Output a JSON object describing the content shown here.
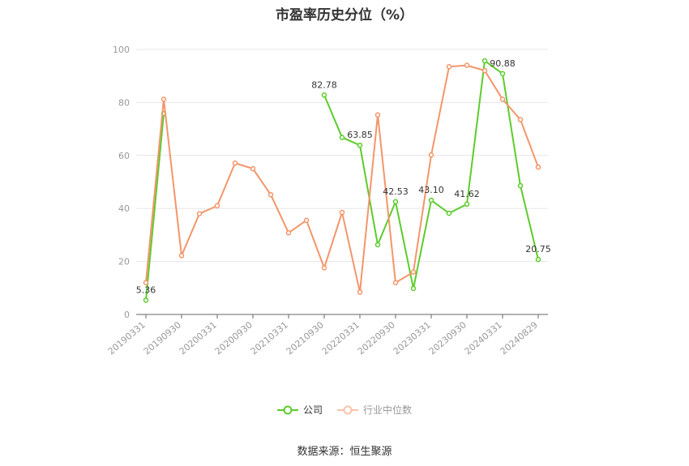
{
  "chart_data": {
    "type": "line",
    "title": "市盈率历史分位（%）",
    "source": "数据来源：恒生聚源",
    "ylim": [
      0,
      100
    ],
    "yticks": [
      0,
      20,
      40,
      60,
      80,
      100
    ],
    "x": [
      "20190331",
      "20190630",
      "20190930",
      "20191231",
      "20200331",
      "20200630",
      "20200930",
      "20201231",
      "20210331",
      "20210630",
      "20210930",
      "20211231",
      "20220331",
      "20220630",
      "20220930",
      "20221231",
      "20230331",
      "20230630",
      "20230930",
      "20231231",
      "20240331",
      "20240630",
      "20240829"
    ],
    "xtick_labels": [
      "20190331",
      "20190930",
      "20200331",
      "20200930",
      "20210331",
      "20210930",
      "20220331",
      "20220930",
      "20230331",
      "20230930",
      "20240331",
      "20240829"
    ],
    "grid": true,
    "legend_position": "bottom",
    "series": [
      {
        "name": "公司",
        "color": "#5ccc2c",
        "values": [
          5.36,
          75.8,
          null,
          null,
          null,
          null,
          null,
          null,
          null,
          null,
          82.78,
          66.8,
          63.85,
          26.3,
          42.53,
          9.8,
          43.1,
          38.2,
          41.62,
          95.7,
          90.88,
          48.6,
          20.75
        ],
        "labels": [
          {
            "index": 0,
            "text": "5.36"
          },
          {
            "index": 10,
            "text": "82.78"
          },
          {
            "index": 12,
            "text": "63.85"
          },
          {
            "index": 14,
            "text": "42.53"
          },
          {
            "index": 16,
            "text": "43.10"
          },
          {
            "index": 18,
            "text": "41.62"
          },
          {
            "index": 20,
            "text": "90.88"
          },
          {
            "index": 22,
            "text": "20.75"
          }
        ]
      },
      {
        "name": "行业中位数",
        "color": "#f4956a",
        "values": [
          12.0,
          81.2,
          22.2,
          38.0,
          41.0,
          57.1,
          55.0,
          45.2,
          30.8,
          35.5,
          17.6,
          38.5,
          8.4,
          75.3,
          12.0,
          16.0,
          60.2,
          93.5,
          94.0,
          92.0,
          81.2,
          73.5,
          55.6
        ]
      }
    ]
  }
}
